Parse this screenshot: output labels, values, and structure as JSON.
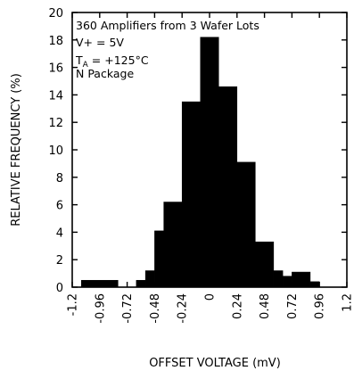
{
  "chart_data": {
    "type": "bar",
    "title": "",
    "annotations": [
      "360 Amplifiers from 3 Wafer Lots",
      "V+ = 5V",
      "T_A = +125°C",
      "N Package"
    ],
    "annotation_parts": {
      "line1": "360 Amplifiers from 3 Wafer Lots",
      "line2": "V+ = 5V",
      "line3_main": "T",
      "line3_sub": "A",
      "line3_rest": " = +125°C",
      "line4": "N Package"
    },
    "xlabel": "OFFSET VOLTAGE (mV)",
    "ylabel": "RELATIVE FREQUENCY (%)",
    "xlim": [
      -1.2,
      1.2
    ],
    "ylim": [
      0,
      20
    ],
    "xticks": [
      -1.2,
      -0.96,
      -0.72,
      -0.48,
      -0.24,
      0,
      0.24,
      0.48,
      0.72,
      0.96,
      1.2
    ],
    "xtick_labels": [
      "-1.2",
      "-0.96",
      "-0.72",
      "-0.48",
      "-0.24",
      "0",
      "0.24",
      "0.48",
      "0.72",
      "0.96",
      "1.2"
    ],
    "yticks": [
      0,
      2,
      4,
      6,
      8,
      10,
      12,
      14,
      16,
      18,
      20
    ],
    "ytick_labels": [
      "0",
      "2",
      "4",
      "6",
      "8",
      "10",
      "12",
      "14",
      "16",
      "18",
      "20"
    ],
    "bar_color": "#000000",
    "bins": [
      {
        "x0": -1.12,
        "x1": -0.8,
        "y": 0.5
      },
      {
        "x0": -0.64,
        "x1": -0.56,
        "y": 0.5
      },
      {
        "x0": -0.56,
        "x1": -0.48,
        "y": 1.2
      },
      {
        "x0": -0.48,
        "x1": -0.4,
        "y": 4.1
      },
      {
        "x0": -0.4,
        "x1": -0.24,
        "y": 6.2
      },
      {
        "x0": -0.24,
        "x1": -0.08,
        "y": 13.5
      },
      {
        "x0": -0.08,
        "x1": 0.08,
        "y": 18.2
      },
      {
        "x0": 0.08,
        "x1": 0.24,
        "y": 14.6
      },
      {
        "x0": 0.24,
        "x1": 0.4,
        "y": 9.1
      },
      {
        "x0": 0.4,
        "x1": 0.56,
        "y": 3.3
      },
      {
        "x0": 0.56,
        "x1": 0.64,
        "y": 1.2
      },
      {
        "x0": 0.64,
        "x1": 0.72,
        "y": 0.8
      },
      {
        "x0": 0.72,
        "x1": 0.88,
        "y": 1.1
      },
      {
        "x0": 0.88,
        "x1": 0.96,
        "y": 0.4
      }
    ]
  }
}
